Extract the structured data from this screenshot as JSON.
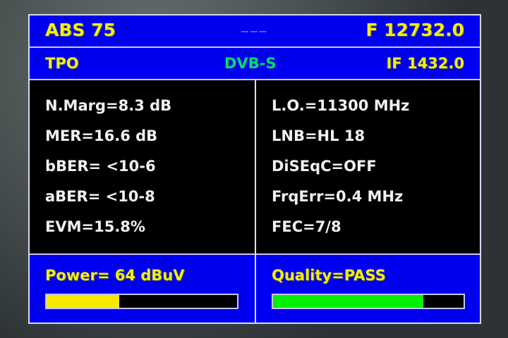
{
  "header": {
    "satellite": "ABS 75",
    "center_indicator": "--- --- ---",
    "frequency": "F 12732.0"
  },
  "subheader": {
    "mode": "TPO",
    "standard": "DVB-S",
    "if_freq": "IF 1432.0"
  },
  "left_params": [
    "N.Marg=8.3 dB",
    "MER=16.6 dB",
    "bBER= <10-6",
    "aBER= <10-8",
    "EVM=15.8%"
  ],
  "right_params": [
    "L.O.=11300 MHz",
    "LNB=HL 18",
    "DiSEqC=OFF",
    "FrqErr=0.4 MHz",
    "FEC=7/8"
  ],
  "power": {
    "label": "Power= 64 dBuV",
    "level_percent": 38,
    "color": "#f8e800"
  },
  "quality": {
    "label": "Quality=PASS",
    "level_percent": 79,
    "color": "#00f000"
  }
}
